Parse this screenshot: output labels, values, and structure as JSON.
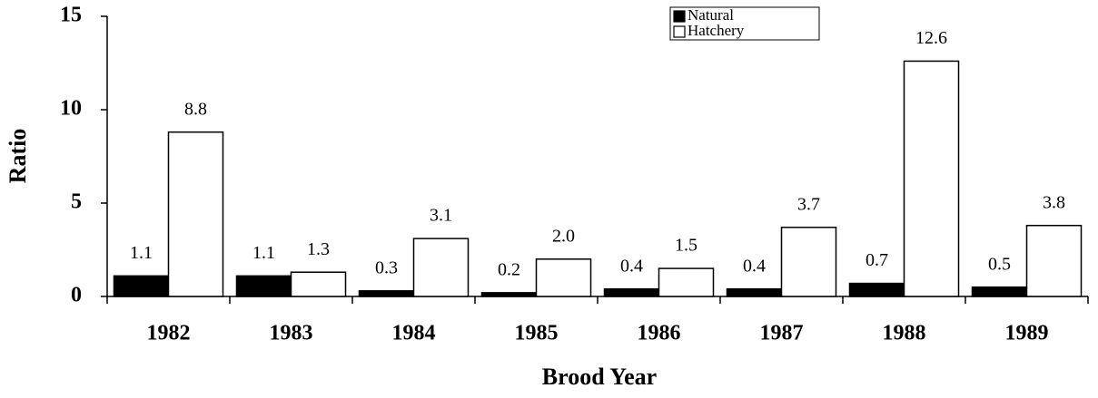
{
  "chart_data": {
    "type": "bar",
    "categories": [
      "1982",
      "1983",
      "1984",
      "1985",
      "1986",
      "1987",
      "1988",
      "1989"
    ],
    "series": [
      {
        "name": "Natural",
        "color": "#000000",
        "values": [
          1.1,
          1.1,
          0.3,
          0.2,
          0.4,
          0.4,
          0.7,
          0.5
        ],
        "value_labels": [
          "1.1",
          "1.1",
          "0.3",
          "0.2",
          "0.4",
          "0.4",
          "0.7",
          "0.5"
        ]
      },
      {
        "name": "Hatchery",
        "color": "#ffffff",
        "values": [
          8.8,
          1.3,
          3.1,
          2.0,
          1.5,
          3.7,
          12.6,
          3.8
        ],
        "value_labels": [
          "8.8",
          "1.3",
          "3.1",
          "2.0",
          "1.5",
          "3.7",
          "12.6",
          "3.8"
        ]
      }
    ],
    "xlabel": "Brood Year",
    "ylabel": "Ratio",
    "ylim": [
      0,
      15
    ],
    "yticks": [
      0,
      5,
      10,
      15
    ],
    "grid": false,
    "legend": "top-right"
  }
}
